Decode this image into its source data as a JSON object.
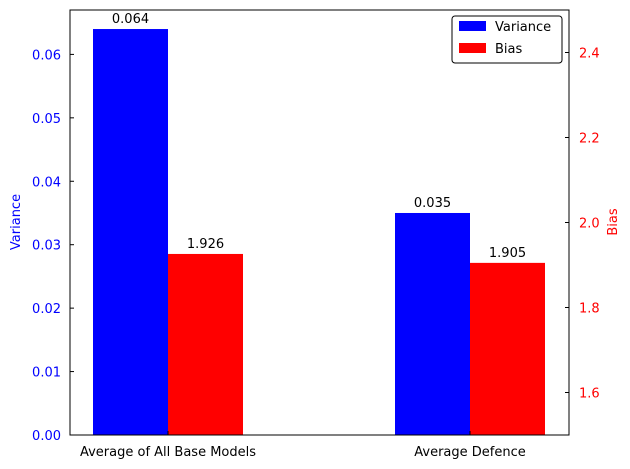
{
  "chart_data": {
    "type": "bar",
    "categories": [
      "Average of All Base Models",
      "Average Defence"
    ],
    "series": [
      {
        "name": "Variance",
        "axis": "left",
        "color": "#0000ff",
        "values": [
          0.064,
          0.035
        ],
        "value_labels": [
          "0.064",
          "0.035"
        ]
      },
      {
        "name": "Bias",
        "axis": "right",
        "color": "#ff0000",
        "values": [
          1.926,
          1.905
        ],
        "value_labels": [
          "1.926",
          "1.905"
        ]
      }
    ],
    "left_axis": {
      "label": "Variance",
      "color": "#0000ff",
      "ylim": [
        0,
        0.067
      ],
      "ticks": [
        0.0,
        0.01,
        0.02,
        0.03,
        0.04,
        0.05,
        0.06
      ],
      "tick_labels": [
        "0.00",
        "0.01",
        "0.02",
        "0.03",
        "0.04",
        "0.05",
        "0.06"
      ]
    },
    "right_axis": {
      "label": "Bias",
      "color": "#ff0000",
      "ylim": [
        1.5,
        2.5
      ],
      "ticks": [
        1.6,
        1.8,
        2.0,
        2.2,
        2.4
      ],
      "tick_labels": [
        "1.6",
        "1.8",
        "2.0",
        "2.2",
        "2.4"
      ]
    },
    "title": "",
    "xlabel": "",
    "grid": false,
    "legend": {
      "position": "top-right",
      "entries": [
        "Variance",
        "Bias"
      ]
    }
  }
}
